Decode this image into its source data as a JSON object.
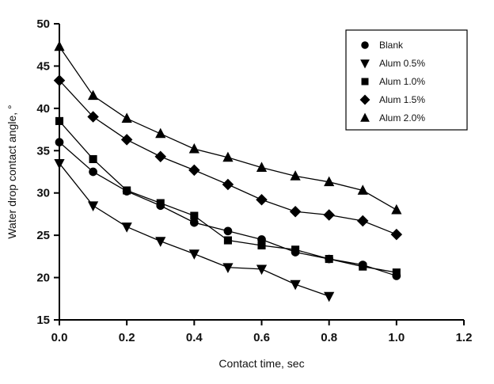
{
  "chart_data": {
    "type": "scatter",
    "title": "",
    "xlabel": "Contact time, sec",
    "ylabel": "Water drop contact angle, °",
    "xlim": [
      0.0,
      1.2
    ],
    "ylim": [
      15,
      50
    ],
    "grid": false,
    "legend_position": "top-right",
    "xticks": [
      0.0,
      0.2,
      0.4,
      0.6,
      0.8,
      1.0,
      1.2
    ],
    "xtick_labels": [
      "0.0",
      "0.2",
      "0.4",
      "0.6",
      "0.8",
      "1.0",
      "1.2"
    ],
    "yticks": [
      15,
      20,
      25,
      30,
      35,
      40,
      45,
      50
    ],
    "ytick_labels": [
      "15",
      "20",
      "25",
      "30",
      "35",
      "40",
      "45",
      "50"
    ],
    "line_color": "#000000",
    "marker_color": "#000000",
    "series": [
      {
        "name": "Blank",
        "marker": "circle",
        "x": [
          0.0,
          0.1,
          0.2,
          0.3,
          0.4,
          0.5,
          0.6,
          0.7,
          0.8,
          0.9,
          1.0
        ],
        "y": [
          36.0,
          32.5,
          30.2,
          28.5,
          26.5,
          25.5,
          24.5,
          23.0,
          22.2,
          21.5,
          20.2
        ]
      },
      {
        "name": "Alum 0.5%",
        "marker": "triangle-down",
        "x": [
          0.0,
          0.1,
          0.2,
          0.3,
          0.4,
          0.5,
          0.6,
          0.7,
          0.8
        ],
        "y": [
          33.5,
          28.5,
          26.0,
          24.3,
          22.8,
          21.2,
          21.0,
          19.2,
          17.8
        ]
      },
      {
        "name": "Alum 1.0%",
        "marker": "square",
        "x": [
          0.0,
          0.1,
          0.2,
          0.3,
          0.4,
          0.5,
          0.6,
          0.7,
          0.8,
          0.9,
          1.0
        ],
        "y": [
          38.5,
          34.0,
          30.3,
          28.8,
          27.3,
          24.4,
          23.8,
          23.3,
          22.2,
          21.3,
          20.6
        ]
      },
      {
        "name": "Alum 1.5%",
        "marker": "diamond",
        "x": [
          0.0,
          0.1,
          0.2,
          0.3,
          0.4,
          0.5,
          0.6,
          0.7,
          0.8,
          0.9,
          1.0
        ],
        "y": [
          43.3,
          39.0,
          36.3,
          34.3,
          32.7,
          31.0,
          29.2,
          27.8,
          27.4,
          26.7,
          25.1
        ]
      },
      {
        "name": "Alum 2.0%",
        "marker": "triangle-up",
        "x": [
          0.0,
          0.1,
          0.2,
          0.3,
          0.4,
          0.5,
          0.6,
          0.7,
          0.8,
          0.9,
          1.0
        ],
        "y": [
          47.3,
          41.5,
          38.8,
          37.0,
          35.2,
          34.2,
          33.0,
          32.0,
          31.3,
          30.3,
          28.0
        ]
      }
    ]
  }
}
